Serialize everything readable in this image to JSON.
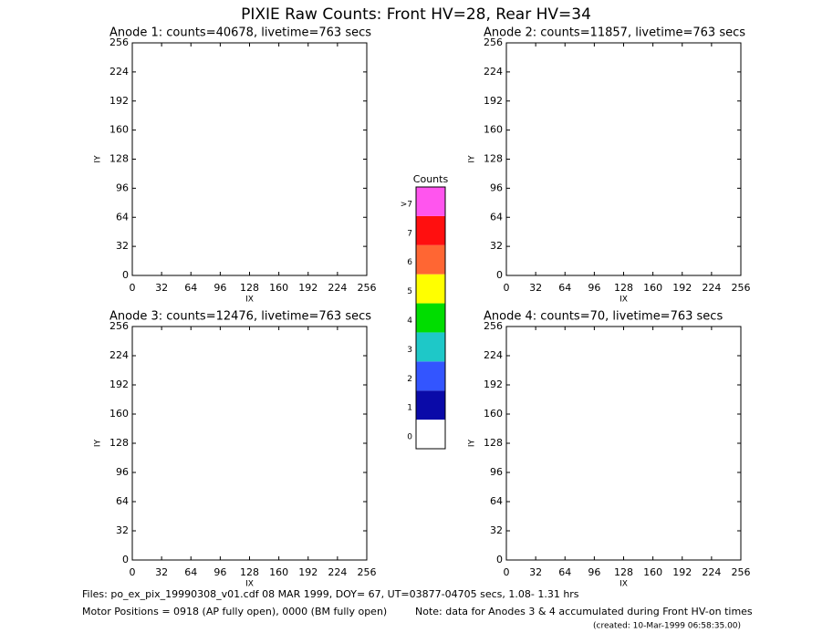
{
  "title": "PIXIE Raw Counts:  Front HV=28, Rear HV=34",
  "panels": [
    {
      "title": "Anode 1: counts=40678, livetime=763 secs",
      "x_label": "IX",
      "y_label": "IY",
      "xlim": [
        0,
        256
      ],
      "ylim": [
        0,
        256
      ],
      "xticks": [
        0,
        32,
        64,
        96,
        128,
        160,
        192,
        224,
        256
      ],
      "yticks": [
        0,
        32,
        64,
        96,
        128,
        160,
        192,
        224,
        256
      ]
    },
    {
      "title": "Anode 2: counts=11857, livetime=763 secs",
      "x_label": "IX",
      "y_label": "IY",
      "xlim": [
        0,
        256
      ],
      "ylim": [
        0,
        256
      ],
      "xticks": [
        0,
        32,
        64,
        96,
        128,
        160,
        192,
        224,
        256
      ],
      "yticks": [
        0,
        32,
        64,
        96,
        128,
        160,
        192,
        224,
        256
      ]
    },
    {
      "title": "Anode 3: counts=12476, livetime=763 secs",
      "x_label": "IX",
      "y_label": "IY",
      "xlim": [
        0,
        256
      ],
      "ylim": [
        0,
        256
      ],
      "xticks": [
        0,
        32,
        64,
        96,
        128,
        160,
        192,
        224,
        256
      ],
      "yticks": [
        0,
        32,
        64,
        96,
        128,
        160,
        192,
        224,
        256
      ]
    },
    {
      "title": "Anode 4: counts=70, livetime=763 secs",
      "x_label": "IX",
      "y_label": "IY",
      "xlim": [
        0,
        256
      ],
      "ylim": [
        0,
        256
      ],
      "xticks": [
        0,
        32,
        64,
        96,
        128,
        160,
        192,
        224,
        256
      ],
      "yticks": [
        0,
        32,
        64,
        96,
        128,
        160,
        192,
        224,
        256
      ]
    }
  ],
  "colorbar": {
    "title": "Counts",
    "levels": [
      {
        "label": "0",
        "color": "#ffffff"
      },
      {
        "label": "1",
        "color": "#0a0aa8"
      },
      {
        "label": "2",
        "color": "#3355ff"
      },
      {
        "label": "3",
        "color": "#1ec8c8"
      },
      {
        "label": "4",
        "color": "#00dd00"
      },
      {
        "label": "5",
        "color": "#ffff00"
      },
      {
        "label": "6",
        "color": "#ff6633"
      },
      {
        "label": "7",
        "color": "#ff0f0f"
      },
      {
        "label": ">7",
        "color": "#ff55ee"
      }
    ]
  },
  "footer": {
    "files": "Files: po_ex_pix_19990308_v01.cdf    08 MAR 1999, DOY= 67, UT=03877-04705 secs,  1.08- 1.31 hrs",
    "motor": "Motor Positions = 0918 (AP fully open), 0000 (BM fully open)",
    "note": "Note: data for Anodes 3 & 4 accumulated during Front HV-on times",
    "created": "(created: 10-Mar-1999 06:58:35.00)"
  }
}
